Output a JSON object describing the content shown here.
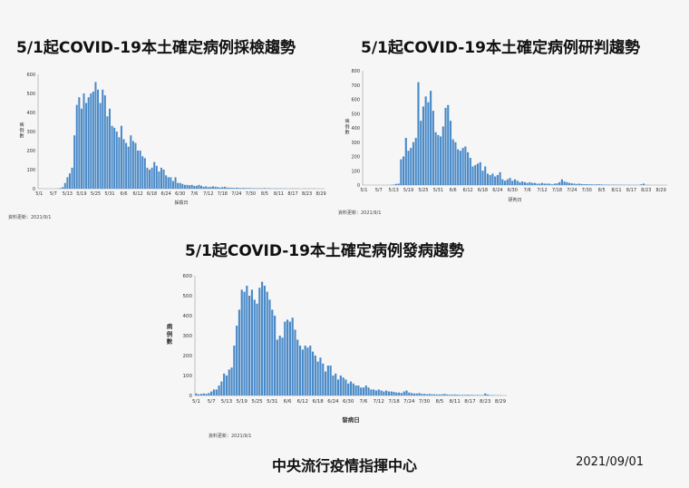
{
  "chart_data": [
    {
      "type": "bar",
      "title": "5/1起COVID-19本土確定病例採檢趨勢",
      "xlabel": "採檢日",
      "ylabel": "病例數",
      "ylim": [
        0,
        600
      ],
      "yticks": [
        0,
        100,
        200,
        300,
        400,
        500,
        600
      ],
      "xticks": [
        "5/1",
        "5/7",
        "5/13",
        "5/19",
        "5/25",
        "5/31",
        "6/6",
        "6/12",
        "6/18",
        "6/24",
        "6/30",
        "7/6",
        "7/12",
        "7/18",
        "7/24",
        "7/30",
        "8/5",
        "8/11",
        "8/17",
        "8/23",
        "8/29"
      ],
      "color": "#4a8ac8",
      "note": "資料更新：2021/9/1",
      "values": [
        0,
        0,
        0,
        0,
        0,
        0,
        0,
        0,
        1,
        3,
        8,
        30,
        60,
        80,
        110,
        280,
        440,
        480,
        420,
        500,
        450,
        480,
        500,
        510,
        560,
        520,
        450,
        520,
        490,
        380,
        420,
        330,
        320,
        300,
        270,
        330,
        260,
        240,
        220,
        280,
        250,
        240,
        200,
        200,
        170,
        160,
        110,
        100,
        110,
        140,
        120,
        90,
        110,
        100,
        70,
        60,
        60,
        40,
        60,
        30,
        30,
        25,
        20,
        20,
        18,
        20,
        15,
        15,
        20,
        15,
        10,
        12,
        8,
        10,
        12,
        10,
        8,
        6,
        8,
        10,
        6,
        5,
        5,
        4,
        5,
        4,
        3,
        4,
        3,
        3,
        3,
        2,
        2,
        2,
        2,
        2,
        3,
        2,
        2,
        1,
        1,
        2,
        1,
        1,
        1,
        1,
        0,
        1,
        1,
        1,
        1,
        0,
        0,
        1,
        0,
        1,
        0,
        1,
        0,
        0,
        0,
        0
      ]
    },
    {
      "type": "bar",
      "title": "5/1起COVID-19本土確定病例研判趨勢",
      "xlabel": "研判日",
      "ylabel": "病例數",
      "ylim": [
        0,
        800
      ],
      "yticks": [
        0,
        100,
        200,
        300,
        400,
        500,
        600,
        700,
        800
      ],
      "xticks": [
        "5/1",
        "5/7",
        "5/13",
        "5/19",
        "5/25",
        "5/31",
        "6/6",
        "6/12",
        "6/18",
        "6/24",
        "6/30",
        "7/6",
        "7/12",
        "7/18",
        "7/24",
        "7/30",
        "8/5",
        "8/11",
        "8/17",
        "8/23",
        "8/29"
      ],
      "color": "#4a8ac8",
      "note": "資料更新：2021/9/1",
      "values": [
        0,
        0,
        0,
        0,
        0,
        0,
        0,
        0,
        0,
        0,
        0,
        1,
        3,
        8,
        10,
        180,
        200,
        330,
        240,
        260,
        300,
        330,
        720,
        450,
        550,
        620,
        580,
        660,
        520,
        370,
        350,
        340,
        410,
        540,
        560,
        450,
        320,
        300,
        250,
        240,
        260,
        270,
        230,
        190,
        130,
        140,
        150,
        160,
        100,
        130,
        80,
        70,
        80,
        60,
        70,
        90,
        40,
        30,
        40,
        50,
        30,
        40,
        30,
        20,
        25,
        20,
        15,
        20,
        15,
        15,
        10,
        10,
        15,
        10,
        10,
        10,
        5,
        10,
        12,
        20,
        40,
        25,
        20,
        15,
        12,
        10,
        8,
        10,
        7,
        6,
        6,
        5,
        5,
        4,
        5,
        5,
        4,
        3,
        3,
        3,
        2,
        3,
        2,
        2,
        2,
        2,
        1,
        2,
        1,
        1,
        1,
        1,
        5,
        10,
        1,
        1,
        0,
        0,
        0,
        0,
        0,
        0,
        0
      ]
    },
    {
      "type": "bar",
      "title": "5/1起COVID-19本土確定病例發病趨勢",
      "xlabel": "發病日",
      "ylabel": "病例數",
      "ylim": [
        0,
        600
      ],
      "yticks": [
        0,
        100,
        200,
        300,
        400,
        500,
        600
      ],
      "xticks": [
        "5/1",
        "5/7",
        "5/13",
        "5/19",
        "5/25",
        "5/31",
        "6/6",
        "6/12",
        "6/18",
        "6/24",
        "6/30",
        "7/6",
        "7/12",
        "7/18",
        "7/24",
        "7/30",
        "8/5",
        "8/11",
        "8/17",
        "8/23",
        "8/29"
      ],
      "color": "#4a8ac8",
      "note": "資料更新：2021/9/1",
      "values": [
        10,
        6,
        8,
        10,
        8,
        12,
        20,
        30,
        30,
        50,
        70,
        110,
        100,
        130,
        140,
        250,
        350,
        430,
        530,
        520,
        550,
        500,
        530,
        480,
        460,
        540,
        570,
        550,
        520,
        480,
        430,
        400,
        280,
        300,
        290,
        370,
        380,
        370,
        390,
        330,
        280,
        250,
        230,
        250,
        240,
        250,
        220,
        200,
        170,
        190,
        160,
        120,
        150,
        150,
        100,
        110,
        80,
        100,
        90,
        80,
        60,
        70,
        60,
        50,
        50,
        40,
        40,
        50,
        40,
        30,
        30,
        25,
        30,
        25,
        20,
        25,
        20,
        20,
        18,
        15,
        15,
        12,
        20,
        25,
        15,
        12,
        10,
        10,
        12,
        8,
        8,
        6,
        8,
        6,
        6,
        5,
        5,
        6,
        8,
        5,
        4,
        4,
        5,
        4,
        3,
        3,
        3,
        4,
        3,
        3,
        2,
        3,
        2,
        2,
        10,
        5,
        2,
        2,
        1,
        1,
        1,
        0,
        0
      ]
    }
  ],
  "footer": {
    "organization": "中央流行疫情指揮中心",
    "date": "2021/09/01"
  }
}
